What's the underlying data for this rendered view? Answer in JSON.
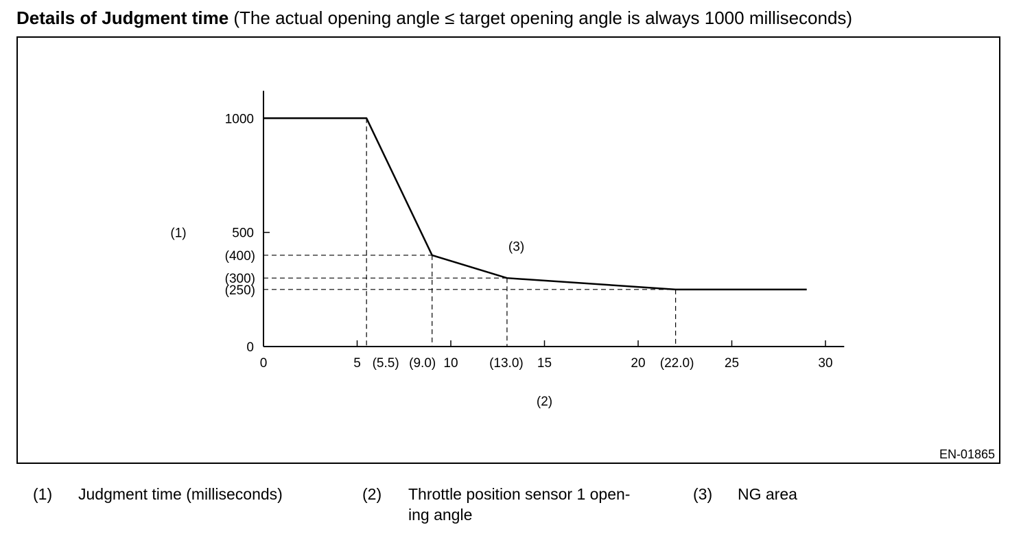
{
  "heading": {
    "bold": "Details of Judgment time",
    "rest": " (The actual opening angle ≤ target opening angle is always 1000 milliseconds)"
  },
  "figure_code": "EN-01865",
  "legend": [
    {
      "num": "(1)",
      "text": "Judgment time (milliseconds)"
    },
    {
      "num": "(2)",
      "text": "Throttle position sensor 1 open-\ning angle"
    },
    {
      "num": "(3)",
      "text": "NG area"
    }
  ],
  "chart_data": {
    "type": "line",
    "title": "",
    "xlabel": "(2)",
    "ylabel": "(1)",
    "xlim": [
      0,
      31
    ],
    "ylim": [
      0,
      1120
    ],
    "x_ticks": [
      0,
      5,
      10,
      15,
      20,
      25,
      30
    ],
    "y_ticks": [
      0,
      500,
      1000
    ],
    "marked_x": [
      {
        "value": 5.5,
        "label": "(5.5)"
      },
      {
        "value": 9.0,
        "label": "(9.0)"
      },
      {
        "value": 13.0,
        "label": "(13.0)"
      },
      {
        "value": 22.0,
        "label": "(22.0)"
      }
    ],
    "marked_y": [
      {
        "value": 400,
        "label": "(400)"
      },
      {
        "value": 300,
        "label": "(300)"
      },
      {
        "value": 250,
        "label": "(250)"
      }
    ],
    "series": [
      {
        "x": [
          0,
          5.5,
          9.0,
          13.0,
          22.0,
          29.0
        ],
        "y": [
          1000,
          1000,
          400,
          300,
          250,
          250
        ]
      }
    ],
    "annotations": [
      {
        "text": "(3)",
        "x": 13.5,
        "y": 440
      }
    ]
  }
}
